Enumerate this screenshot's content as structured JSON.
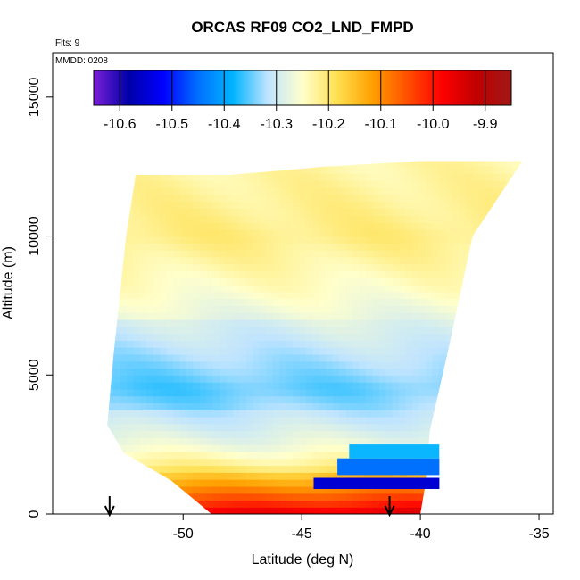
{
  "chart_data": {
    "type": "heatmap",
    "title": "ORCAS RF09 CO2_LND_FMPD",
    "subtitle_flights": "Flts: 9",
    "subtitle_date": "MMDD: 0208",
    "xlabel": "Latitude (deg N)",
    "ylabel": "Altitude (m)",
    "xlim": [
      -55.5,
      -34.4
    ],
    "ylim": [
      0,
      16600
    ],
    "xticks": [
      -50,
      -45,
      -40,
      -35
    ],
    "xtick_labels": [
      "-50",
      "-45",
      "-40",
      "-35"
    ],
    "yticks": [
      0,
      5000,
      10000,
      15000
    ],
    "ytick_labels": [
      "0",
      "5000",
      "10000",
      "15000"
    ],
    "colorbar": {
      "range": [
        -10.65,
        -9.85
      ],
      "ticks": [
        -10.6,
        -10.5,
        -10.4,
        -10.3,
        -10.2,
        -10.1,
        -10.0,
        -9.9
      ],
      "tick_labels": [
        "-10.6",
        "-10.5",
        "-10.4",
        "-10.3",
        "-10.2",
        "-10.1",
        "-10.0",
        "-9.9"
      ],
      "colors": [
        "#7b1fd8",
        "#0000a8",
        "#0000ff",
        "#0070ff",
        "#00b4ff",
        "#bfe4ff",
        "#ffffcc",
        "#ffe050",
        "#ffa000",
        "#ff5000",
        "#ff0000",
        "#c00000",
        "#a01818"
      ]
    },
    "domain_outline": {
      "upper_edge": [
        [
          -52.0,
          12200
        ],
        [
          -48.0,
          12200
        ],
        [
          -44.0,
          12500
        ],
        [
          -40.0,
          12700
        ],
        [
          -35.7,
          12700
        ]
      ],
      "right_edge": [
        [
          -35.7,
          12700
        ],
        [
          -37.8,
          10000
        ],
        [
          -38.8,
          6000
        ],
        [
          -39.6,
          3000
        ],
        [
          -39.8,
          1000
        ],
        [
          -40.0,
          0
        ]
      ],
      "left_edge": [
        [
          -52.0,
          12200
        ],
        [
          -52.4,
          10000
        ],
        [
          -52.9,
          6000
        ],
        [
          -53.2,
          3200
        ],
        [
          -52.5,
          2200
        ],
        [
          -50.5,
          1200
        ],
        [
          -48.8,
          0
        ]
      ]
    },
    "field_profile": {
      "description_levels_m": [
        0,
        400,
        800,
        1200,
        1800,
        2500,
        3500,
        4500,
        6000,
        8000,
        10000,
        12500
      ],
      "values": [
        -9.97,
        -10.04,
        -10.1,
        -10.15,
        -10.22,
        -10.27,
        -10.31,
        -10.34,
        -10.3,
        -10.25,
        -10.21,
        -10.23
      ]
    },
    "north_low_anomaly": [
      {
        "lat_from": -44.5,
        "lat_to": -39.2,
        "alt_from": 900,
        "alt_to": 1300,
        "value": -10.55
      },
      {
        "lat_from": -43.5,
        "lat_to": -39.2,
        "alt_from": 1400,
        "alt_to": 2000,
        "value": -10.45
      },
      {
        "lat_from": -43.0,
        "lat_to": -39.2,
        "alt_from": 2000,
        "alt_to": 2500,
        "value": -10.38
      }
    ],
    "flight_markers": [
      {
        "lat": -53.1,
        "label": ""
      },
      {
        "lat": -41.3,
        "label": ""
      }
    ]
  }
}
